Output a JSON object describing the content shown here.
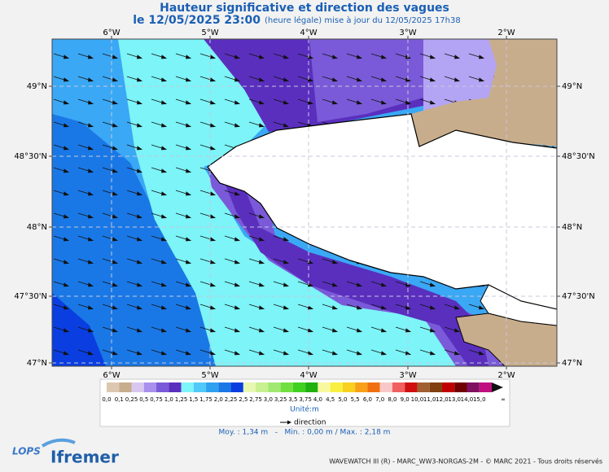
{
  "header": {
    "title": "Hauteur significative et direction des vagues",
    "date": "le 12/05/2025 23:00",
    "update": "(heure légale) mise à jour du 12/05/2025 17h38"
  },
  "map": {
    "lon_labels": [
      "6°W",
      "5°W",
      "4°W",
      "3°W",
      "2°W"
    ],
    "lat_labels": [
      "49°N",
      "48°30'N",
      "48°N",
      "47°30'N",
      "47°N"
    ]
  },
  "legend": {
    "colors": [
      "#dcc8b0",
      "#c8ad8c",
      "#d8c8f0",
      "#a890ec",
      "#7a5ad8",
      "#5a2fbe",
      "#7cf4f8",
      "#50c8f8",
      "#2ea0f0",
      "#1a78e6",
      "#0a3ee0",
      "#e8f8b0",
      "#c8f090",
      "#a0e870",
      "#70e040",
      "#40d020",
      "#20b010",
      "#f8f8a0",
      "#f8f040",
      "#f8d020",
      "#f8a018",
      "#f07010",
      "#f8c8c8",
      "#f06060",
      "#d01010",
      "#a06030",
      "#804010",
      "#c00000",
      "#700000",
      "#801060",
      "#c01080"
    ],
    "labels": [
      "0,0",
      "0,1",
      "0,25",
      "0,5",
      "0,75",
      "1,0",
      "1,25",
      "1,5",
      "1,75",
      "2,0",
      "2,25",
      "2,5",
      "2,75",
      "3,0",
      "3,25",
      "3,5",
      "3,75",
      "4,0",
      "4,5",
      "5,0",
      "5,5",
      "6,0",
      "7,0",
      "8,0",
      "9,0",
      "10,0",
      "11,0",
      "12,0",
      "13,0",
      "14,0",
      "15,0",
      "∞"
    ],
    "unit": "Unité:m",
    "direction": "direction"
  },
  "stats": "Moy. : 1,34 m   -   Min. : 0,00 m / Max. : 2,18 m",
  "footer": "WAVEWATCH III (R) - MARC_WW3-NORGAS-2M - © MARC 2021 - Tous droits réservés",
  "logos": [
    "LOPS",
    "Ifremer"
  ]
}
